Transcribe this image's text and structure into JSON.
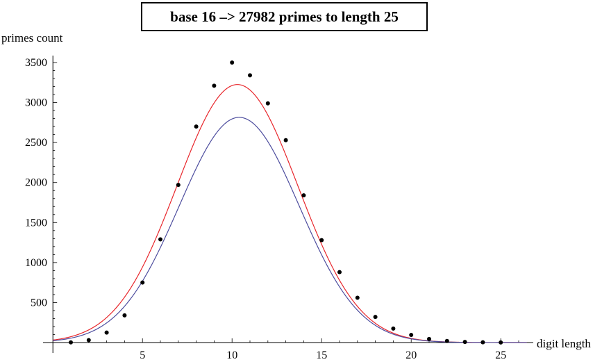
{
  "chart_data": {
    "type": "scatter",
    "title": "base 16  –>  27982 primes to length 25",
    "xlabel": "digit length",
    "ylabel": "primes count",
    "xlim": [
      0,
      26.5
    ],
    "ylim": [
      0,
      3600
    ],
    "x_ticks": [
      5,
      10,
      15,
      20,
      25
    ],
    "y_ticks": [
      500,
      1000,
      1500,
      2000,
      2500,
      3000,
      3500
    ],
    "grid": false,
    "legend": "none",
    "points": [
      {
        "x": 1,
        "y": 2
      },
      {
        "x": 2,
        "y": 30
      },
      {
        "x": 3,
        "y": 125
      },
      {
        "x": 4,
        "y": 340
      },
      {
        "x": 5,
        "y": 750
      },
      {
        "x": 6,
        "y": 1290
      },
      {
        "x": 7,
        "y": 1970
      },
      {
        "x": 8,
        "y": 2700
      },
      {
        "x": 9,
        "y": 3210
      },
      {
        "x": 10,
        "y": 3500
      },
      {
        "x": 11,
        "y": 3340
      },
      {
        "x": 12,
        "y": 2990
      },
      {
        "x": 13,
        "y": 2530
      },
      {
        "x": 14,
        "y": 1840
      },
      {
        "x": 15,
        "y": 1280
      },
      {
        "x": 16,
        "y": 880
      },
      {
        "x": 17,
        "y": 560
      },
      {
        "x": 18,
        "y": 320
      },
      {
        "x": 19,
        "y": 175
      },
      {
        "x": 20,
        "y": 95
      },
      {
        "x": 21,
        "y": 45
      },
      {
        "x": 22,
        "y": 20
      },
      {
        "x": 23,
        "y": 8
      },
      {
        "x": 24,
        "y": 3
      },
      {
        "x": 25,
        "y": 1
      }
    ],
    "curves": [
      {
        "color": "#e8262b",
        "peak_x": 10.3,
        "peak_y": 3225,
        "sigma": 3.38
      },
      {
        "color": "#4d4d9e",
        "peak_x": 10.4,
        "peak_y": 2815,
        "sigma": 3.35
      }
    ]
  }
}
